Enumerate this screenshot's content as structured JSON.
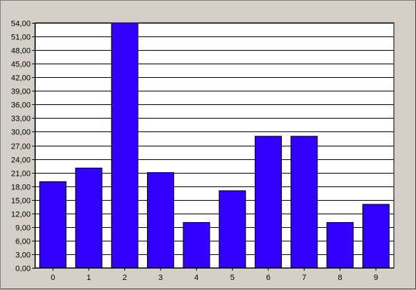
{
  "chart_data": {
    "type": "bar",
    "title": "",
    "xlabel": "",
    "ylabel": "",
    "categories": [
      "0",
      "1",
      "2",
      "3",
      "4",
      "5",
      "6",
      "7",
      "8",
      "9"
    ],
    "values": [
      19,
      22,
      54,
      21,
      10,
      17,
      29,
      29,
      10,
      14
    ],
    "ylim": [
      0,
      54
    ],
    "yticks": [
      "0,00",
      "3,00",
      "6,00",
      "9,00",
      "12,00",
      "15,00",
      "18,00",
      "21,00",
      "24,00",
      "27,00",
      "30,00",
      "33,00",
      "36,00",
      "39,00",
      "42,00",
      "45,00",
      "48,00",
      "51,00",
      "54,00"
    ],
    "grid": true,
    "legend": "none",
    "bar_color": "#3300ff",
    "plot_background": "#ffffff",
    "window_background": "#d4d0c8"
  }
}
